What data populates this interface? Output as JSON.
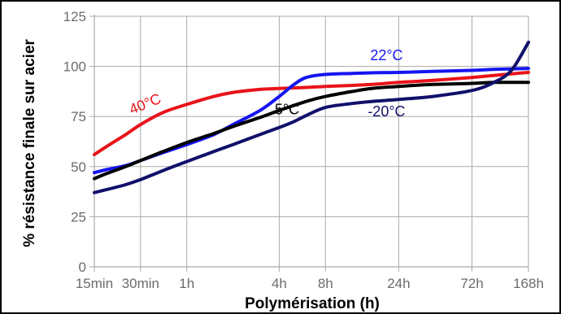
{
  "chart_data": {
    "type": "line",
    "xlabel": "Polymérisation (h)",
    "ylabel": "% résistance finale sur acier",
    "ylim": [
      0,
      125
    ],
    "y_ticks": [
      0,
      25,
      50,
      75,
      100,
      125
    ],
    "x_scale": "log",
    "x_ticks": [
      {
        "label": "15min",
        "hours": 0.25
      },
      {
        "label": "30min",
        "hours": 0.5
      },
      {
        "label": "1h",
        "hours": 1
      },
      {
        "label": "4h",
        "hours": 4
      },
      {
        "label": "8h",
        "hours": 8
      },
      {
        "label": "24h",
        "hours": 24
      },
      {
        "label": "72h",
        "hours": 72
      },
      {
        "label": "168h",
        "hours": 168
      }
    ],
    "xlim_hours": [
      0.25,
      168
    ],
    "grid": true,
    "legend": "none (inline labels)",
    "series": [
      {
        "name": "40°C",
        "color": "#e8131a",
        "x": [
          0.25,
          0.3,
          0.4,
          0.5,
          0.7,
          1,
          1.5,
          2,
          3,
          4,
          6,
          8,
          12,
          16,
          24,
          40,
          72,
          100,
          168
        ],
        "y": [
          56,
          60,
          66,
          71,
          77,
          81,
          85,
          87,
          88.5,
          89,
          89.5,
          90,
          90.5,
          91,
          92,
          93,
          94.5,
          95.5,
          97
        ]
      },
      {
        "name": "22°C",
        "color": "#1515f0",
        "x": [
          0.25,
          0.3,
          0.4,
          0.5,
          0.7,
          1,
          1.5,
          2,
          3,
          4,
          5,
          6,
          8,
          12,
          16,
          24,
          40,
          72,
          100,
          168
        ],
        "y": [
          47,
          48.5,
          50.5,
          53,
          57,
          61,
          66,
          71,
          78,
          85,
          91,
          94.5,
          96,
          96.5,
          96.8,
          97,
          97.5,
          98,
          98.5,
          99
        ]
      },
      {
        "name": "5°C",
        "color": "#000000",
        "x": [
          0.25,
          0.3,
          0.4,
          0.5,
          0.7,
          1,
          1.5,
          2,
          3,
          4,
          6,
          8,
          12,
          16,
          24,
          40,
          72,
          100,
          168
        ],
        "y": [
          44,
          46.5,
          50,
          53,
          57.5,
          62,
          66.5,
          70,
          74.5,
          78,
          82.5,
          85,
          87.5,
          89,
          90,
          91,
          91.5,
          92,
          92
        ]
      },
      {
        "name": "-20°C",
        "color": "#10106b",
        "x": [
          0.25,
          0.3,
          0.4,
          0.5,
          0.7,
          1,
          1.5,
          2,
          3,
          4,
          5,
          6,
          8,
          12,
          16,
          24,
          40,
          72,
          100,
          130,
          168
        ],
        "y": [
          37,
          38.5,
          41,
          43.5,
          48,
          52.5,
          57.5,
          61,
          66,
          69.5,
          72.5,
          75.5,
          79.5,
          81.5,
          82.5,
          83.5,
          85,
          88,
          92,
          98,
          112
        ]
      }
    ],
    "series_labels": [
      {
        "name": "40°C",
        "hours": 0.55,
        "value": 79,
        "rotate": -22
      },
      {
        "name": "22°C",
        "hours": 20,
        "value": 103,
        "rotate": 0
      },
      {
        "name": "5°C",
        "hours": 4.5,
        "value": 76,
        "rotate": 0
      },
      {
        "name": "-20°C",
        "hours": 20,
        "value": 75,
        "rotate": 0
      }
    ]
  }
}
